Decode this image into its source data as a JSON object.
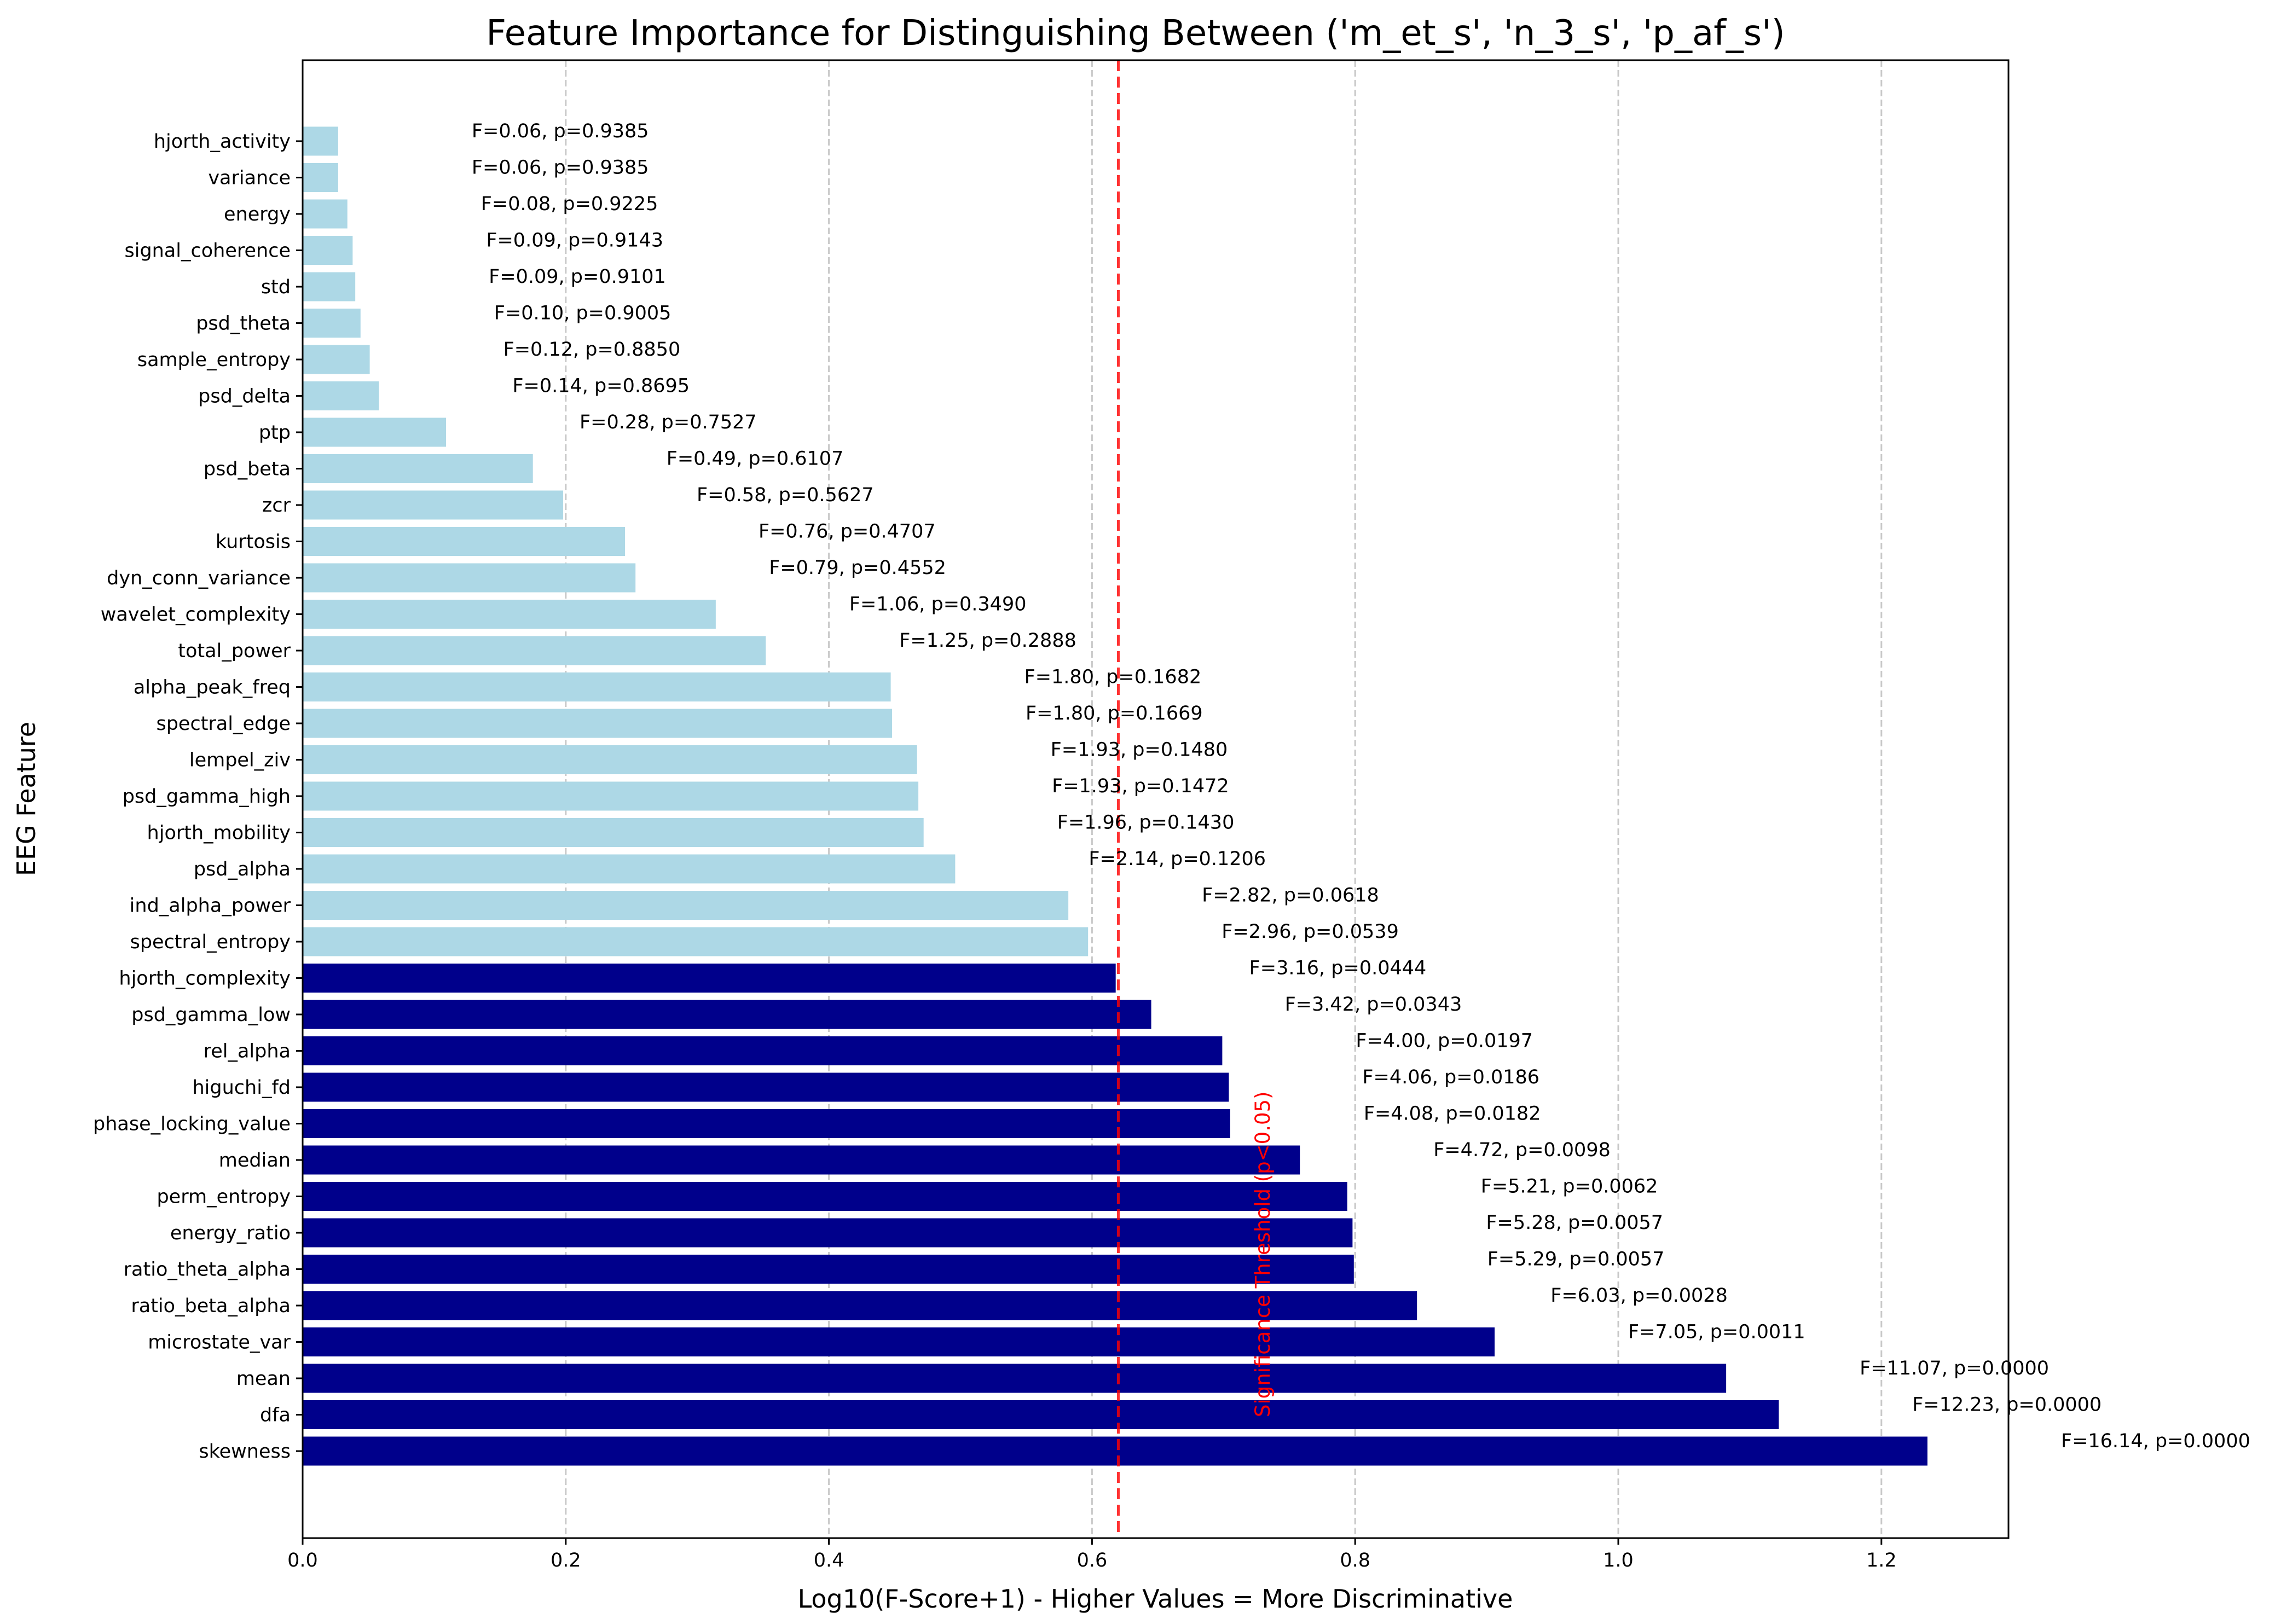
{
  "chart_data": {
    "type": "bar",
    "orientation": "horizontal",
    "title": "Feature Importance for Distinguishing Between ('m_et_s', 'n_3_s', 'p_af_s')",
    "xlabel": "Log10(F-Score+1) - Higher Values = More Discriminative",
    "ylabel": "EEG Feature",
    "xlim": [
      0.0,
      1.3
    ],
    "xticks": [
      "0.0",
      "0.2",
      "0.4",
      "0.6",
      "0.8",
      "1.0",
      "1.2"
    ],
    "grid": "x-axis dashed",
    "threshold": {
      "value": 0.62,
      "label": "Significance Threshold (p<0.05)",
      "color": "#ff0000"
    },
    "colors": {
      "significant": "#00008b",
      "not_significant": "#add8e6"
    },
    "features": [
      {
        "name": "hjorth_activity",
        "value": 0.027,
        "label": "F=0.06, p=0.9385",
        "significant": false
      },
      {
        "name": "variance",
        "value": 0.027,
        "label": "F=0.06, p=0.9385",
        "significant": false
      },
      {
        "name": "energy",
        "value": 0.034,
        "label": "F=0.08, p=0.9225",
        "significant": false
      },
      {
        "name": "signal_coherence",
        "value": 0.038,
        "label": "F=0.09, p=0.9143",
        "significant": false
      },
      {
        "name": "std",
        "value": 0.04,
        "label": "F=0.09, p=0.9101",
        "significant": false
      },
      {
        "name": "psd_theta",
        "value": 0.044,
        "label": "F=0.10, p=0.9005",
        "significant": false
      },
      {
        "name": "sample_entropy",
        "value": 0.051,
        "label": "F=0.12, p=0.8850",
        "significant": false
      },
      {
        "name": "psd_delta",
        "value": 0.058,
        "label": "F=0.14, p=0.8695",
        "significant": false
      },
      {
        "name": "ptp",
        "value": 0.109,
        "label": "F=0.28, p=0.7527",
        "significant": false
      },
      {
        "name": "psd_beta",
        "value": 0.175,
        "label": "F=0.49, p=0.6107",
        "significant": false
      },
      {
        "name": "zcr",
        "value": 0.198,
        "label": "F=0.58, p=0.5627",
        "significant": false
      },
      {
        "name": "kurtosis",
        "value": 0.245,
        "label": "F=0.76, p=0.4707",
        "significant": false
      },
      {
        "name": "dyn_conn_variance",
        "value": 0.253,
        "label": "F=0.79, p=0.4552",
        "significant": false
      },
      {
        "name": "wavelet_complexity",
        "value": 0.314,
        "label": "F=1.06, p=0.3490",
        "significant": false
      },
      {
        "name": "total_power",
        "value": 0.352,
        "label": "F=1.25, p=0.2888",
        "significant": false
      },
      {
        "name": "alpha_peak_freq",
        "value": 0.447,
        "label": "F=1.80, p=0.1682",
        "significant": false
      },
      {
        "name": "spectral_edge",
        "value": 0.448,
        "label": "F=1.80, p=0.1669",
        "significant": false
      },
      {
        "name": "lempel_ziv",
        "value": 0.467,
        "label": "F=1.93, p=0.1480",
        "significant": false
      },
      {
        "name": "psd_gamma_high",
        "value": 0.468,
        "label": "F=1.93, p=0.1472",
        "significant": false
      },
      {
        "name": "hjorth_mobility",
        "value": 0.472,
        "label": "F=1.96, p=0.1430",
        "significant": false
      },
      {
        "name": "psd_alpha",
        "value": 0.496,
        "label": "F=2.14, p=0.1206",
        "significant": false
      },
      {
        "name": "ind_alpha_power",
        "value": 0.582,
        "label": "F=2.82, p=0.0618",
        "significant": false
      },
      {
        "name": "spectral_entropy",
        "value": 0.597,
        "label": "F=2.96, p=0.0539",
        "significant": false
      },
      {
        "name": "hjorth_complexity",
        "value": 0.618,
        "label": "F=3.16, p=0.0444",
        "significant": true
      },
      {
        "name": "psd_gamma_low",
        "value": 0.645,
        "label": "F=3.42, p=0.0343",
        "significant": true
      },
      {
        "name": "rel_alpha",
        "value": 0.699,
        "label": "F=4.00, p=0.0197",
        "significant": true
      },
      {
        "name": "higuchi_fd",
        "value": 0.704,
        "label": "F=4.06, p=0.0186",
        "significant": true
      },
      {
        "name": "phase_locking_value",
        "value": 0.705,
        "label": "F=4.08, p=0.0182",
        "significant": true
      },
      {
        "name": "median",
        "value": 0.758,
        "label": "F=4.72, p=0.0098",
        "significant": true
      },
      {
        "name": "perm_entropy",
        "value": 0.794,
        "label": "F=5.21, p=0.0062",
        "significant": true
      },
      {
        "name": "energy_ratio",
        "value": 0.798,
        "label": "F=5.28, p=0.0057",
        "significant": true
      },
      {
        "name": "ratio_theta_alpha",
        "value": 0.799,
        "label": "F=5.29, p=0.0057",
        "significant": true
      },
      {
        "name": "ratio_beta_alpha",
        "value": 0.847,
        "label": "F=6.03, p=0.0028",
        "significant": true
      },
      {
        "name": "microstate_var",
        "value": 0.906,
        "label": "F=7.05, p=0.0011",
        "significant": true
      },
      {
        "name": "mean",
        "value": 1.082,
        "label": "F=11.07, p=0.0000",
        "significant": true
      },
      {
        "name": "dfa",
        "value": 1.122,
        "label": "F=12.23, p=0.0000",
        "significant": true
      },
      {
        "name": "skewness",
        "value": 1.235,
        "label": "F=16.14, p=0.0000",
        "significant": true
      }
    ]
  }
}
